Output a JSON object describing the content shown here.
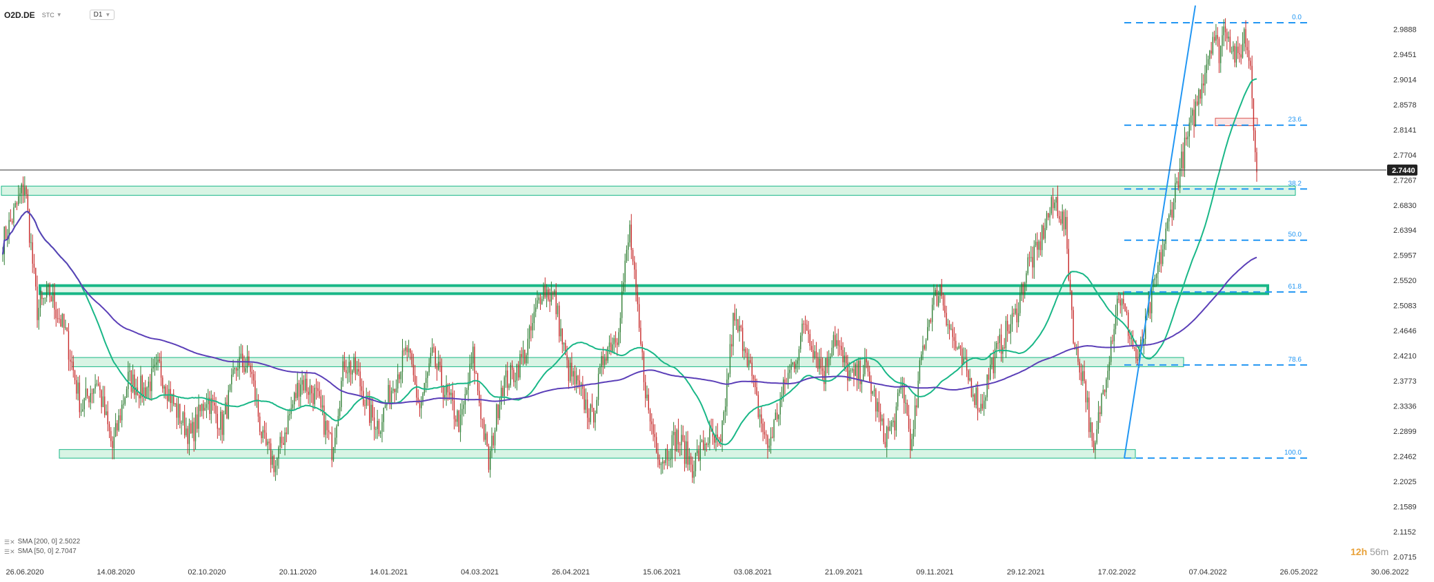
{
  "header": {
    "symbol": "O2D.DE",
    "sub": "STC",
    "timeframe": "D1"
  },
  "legend": [
    {
      "icon": "sma-eye-icon",
      "text": "SMA [200, 0] 2.5022"
    },
    {
      "icon": "sma-eye-icon",
      "text": "SMA [50, 0] 2.7047"
    }
  ],
  "timer": {
    "hours": "12h",
    "minutes": "56m"
  },
  "colors": {
    "up": "#2e7d32",
    "down": "#c62828",
    "sma50": "#19b787",
    "sma200": "#5b3fb8",
    "fib": "#2196f3",
    "zone": "#a8e6c4",
    "zoneBorder": "#19b787",
    "red_zone": "#f7c6c6"
  },
  "chart_data": {
    "type": "candlestick",
    "current_price": "2.7440",
    "y_ticks": [
      "2.9888",
      "2.9451",
      "2.9014",
      "2.8578",
      "2.8141",
      "2.7704",
      "2.7267",
      "2.6830",
      "2.6394",
      "2.5957",
      "2.5520",
      "2.5083",
      "2.4646",
      "2.4210",
      "2.3773",
      "2.3336",
      "2.2899",
      "2.2462",
      "2.2025",
      "2.1589",
      "2.1152",
      "2.0715"
    ],
    "ylim": [
      2.06,
      3.03
    ],
    "x_labels": [
      "26.06.2020",
      "14.08.2020",
      "02.10.2020",
      "20.11.2020",
      "14.01.2021",
      "04.03.2021",
      "26.04.2021",
      "15.06.2021",
      "03.08.2021",
      "21.09.2021",
      "09.11.2021",
      "29.12.2021",
      "17.02.2022",
      "07.04.2022",
      "26.05.2022",
      "30.06.2022"
    ],
    "fib_levels": [
      {
        "label": "0.0",
        "price": 3.0
      },
      {
        "label": "23.6",
        "price": 2.822
      },
      {
        "label": "38.2",
        "price": 2.711
      },
      {
        "label": "50.0",
        "price": 2.622
      },
      {
        "label": "61.8",
        "price": 2.532
      },
      {
        "label": "78.6",
        "price": 2.405
      },
      {
        "label": "100.0",
        "price": 2.243
      }
    ],
    "zones": [
      {
        "low": 2.7,
        "high": 2.716,
        "kind": "light"
      },
      {
        "low": 2.529,
        "high": 2.543,
        "kind": "bold"
      },
      {
        "low": 2.402,
        "high": 2.418,
        "kind": "light"
      },
      {
        "low": 2.243,
        "high": 2.258,
        "kind": "light"
      },
      {
        "low": 2.821,
        "high": 2.834,
        "kind": "red"
      }
    ],
    "anchors": [
      [
        0,
        2.62
      ],
      [
        6,
        2.66
      ],
      [
        14,
        2.72
      ],
      [
        22,
        2.5
      ],
      [
        30,
        2.53
      ],
      [
        40,
        2.46
      ],
      [
        50,
        2.33
      ],
      [
        60,
        2.38
      ],
      [
        70,
        2.26
      ],
      [
        80,
        2.38
      ],
      [
        90,
        2.36
      ],
      [
        100,
        2.4
      ],
      [
        110,
        2.33
      ],
      [
        120,
        2.28
      ],
      [
        130,
        2.35
      ],
      [
        140,
        2.3
      ],
      [
        150,
        2.41
      ],
      [
        158,
        2.4
      ],
      [
        166,
        2.27
      ],
      [
        174,
        2.23
      ],
      [
        182,
        2.31
      ],
      [
        190,
        2.38
      ],
      [
        200,
        2.35
      ],
      [
        210,
        2.26
      ],
      [
        218,
        2.41
      ],
      [
        226,
        2.39
      ],
      [
        234,
        2.32
      ],
      [
        240,
        2.3
      ],
      [
        250,
        2.38
      ],
      [
        258,
        2.43
      ],
      [
        266,
        2.33
      ],
      [
        274,
        2.42
      ],
      [
        282,
        2.36
      ],
      [
        292,
        2.3
      ],
      [
        300,
        2.42
      ],
      [
        310,
        2.23
      ],
      [
        318,
        2.37
      ],
      [
        326,
        2.39
      ],
      [
        334,
        2.43
      ],
      [
        344,
        2.54
      ],
      [
        352,
        2.52
      ],
      [
        360,
        2.4
      ],
      [
        368,
        2.36
      ],
      [
        376,
        2.31
      ],
      [
        384,
        2.43
      ],
      [
        392,
        2.46
      ],
      [
        400,
        2.64
      ],
      [
        406,
        2.46
      ],
      [
        412,
        2.32
      ],
      [
        420,
        2.24
      ],
      [
        430,
        2.28
      ],
      [
        440,
        2.23
      ],
      [
        450,
        2.28
      ],
      [
        458,
        2.26
      ],
      [
        466,
        2.48
      ],
      [
        474,
        2.44
      ],
      [
        480,
        2.35
      ],
      [
        488,
        2.26
      ],
      [
        494,
        2.32
      ],
      [
        500,
        2.38
      ],
      [
        506,
        2.42
      ],
      [
        512,
        2.48
      ],
      [
        518,
        2.43
      ],
      [
        524,
        2.39
      ],
      [
        530,
        2.46
      ],
      [
        536,
        2.41
      ],
      [
        542,
        2.38
      ],
      [
        550,
        2.4
      ],
      [
        556,
        2.35
      ],
      [
        562,
        2.28
      ],
      [
        568,
        2.3
      ],
      [
        574,
        2.37
      ],
      [
        580,
        2.26
      ],
      [
        586,
        2.42
      ],
      [
        592,
        2.5
      ],
      [
        598,
        2.54
      ],
      [
        604,
        2.47
      ],
      [
        610,
        2.42
      ],
      [
        618,
        2.37
      ],
      [
        624,
        2.33
      ],
      [
        630,
        2.4
      ],
      [
        638,
        2.45
      ],
      [
        646,
        2.49
      ],
      [
        654,
        2.58
      ],
      [
        660,
        2.6
      ],
      [
        666,
        2.66
      ],
      [
        672,
        2.69
      ],
      [
        678,
        2.64
      ],
      [
        684,
        2.43
      ],
      [
        690,
        2.38
      ],
      [
        696,
        2.24
      ],
      [
        700,
        2.33
      ],
      [
        706,
        2.43
      ],
      [
        712,
        2.53
      ],
      [
        718,
        2.47
      ],
      [
        724,
        2.41
      ],
      [
        730,
        2.48
      ],
      [
        736,
        2.56
      ],
      [
        742,
        2.63
      ],
      [
        748,
        2.71
      ],
      [
        754,
        2.78
      ],
      [
        760,
        2.84
      ],
      [
        766,
        2.91
      ],
      [
        772,
        2.98
      ],
      [
        776,
        2.95
      ],
      [
        780,
        3.0
      ],
      [
        784,
        2.96
      ],
      [
        788,
        2.93
      ],
      [
        792,
        2.98
      ],
      [
        796,
        2.93
      ],
      [
        800,
        2.74
      ]
    ]
  }
}
